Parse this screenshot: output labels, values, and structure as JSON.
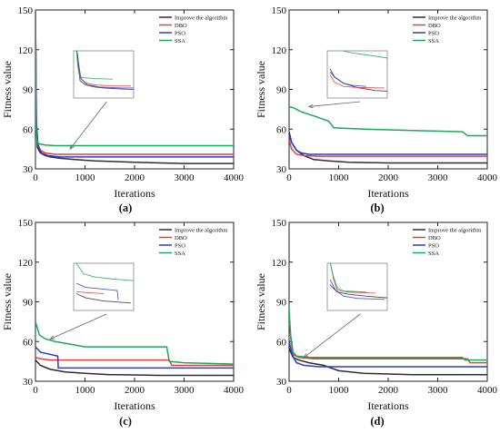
{
  "chart_data": [
    {
      "type": "line",
      "caption": "(a)",
      "xlabel": "Iterations",
      "ylabel": "Fitness value",
      "xlim": [
        0,
        4000
      ],
      "ylim": [
        30,
        150
      ],
      "xticks": [
        0,
        1000,
        2000,
        3000,
        4000
      ],
      "yticks": [
        30,
        60,
        90,
        120,
        150
      ],
      "legend_position": "top-right",
      "series": [
        {
          "name": "Improve the algorithm",
          "color": "#2b2b3a",
          "points": [
            [
              0,
              150
            ],
            [
              15,
              70
            ],
            [
              40,
              46
            ],
            [
              100,
              42
            ],
            [
              200,
              40
            ],
            [
              300,
              39
            ],
            [
              500,
              38
            ],
            [
              800,
              37
            ],
            [
              1200,
              36
            ],
            [
              2000,
              35
            ],
            [
              3000,
              34
            ],
            [
              4000,
              34
            ]
          ]
        },
        {
          "name": "DBO",
          "color": "#e0403a",
          "points": [
            [
              0,
              150
            ],
            [
              20,
              60
            ],
            [
              50,
              48
            ],
            [
              100,
              44
            ],
            [
              200,
              42
            ],
            [
              400,
              41
            ],
            [
              600,
              41
            ],
            [
              4000,
              41
            ]
          ]
        },
        {
          "name": "PSO",
          "color": "#2a3bd1",
          "points": [
            [
              0,
              150
            ],
            [
              20,
              65
            ],
            [
              50,
              48
            ],
            [
              120,
              42
            ],
            [
              250,
              40
            ],
            [
              500,
              39
            ],
            [
              800,
              39
            ],
            [
              4000,
              39
            ]
          ]
        },
        {
          "name": "SSA",
          "color": "#1aa85a",
          "points": [
            [
              0,
              150
            ],
            [
              15,
              60
            ],
            [
              30,
              52
            ],
            [
              60,
              49
            ],
            [
              200,
              48
            ],
            [
              400,
              47.5
            ],
            [
              4000,
              47.5
            ]
          ]
        }
      ],
      "inset": {
        "points_at": [
          700,
          45
        ]
      }
    },
    {
      "type": "line",
      "caption": "(b)",
      "xlabel": "Iterations",
      "ylabel": "Fitness value",
      "xlim": [
        0,
        4000
      ],
      "ylim": [
        30,
        150
      ],
      "xticks": [
        0,
        1000,
        2000,
        3000,
        4000
      ],
      "yticks": [
        30,
        60,
        90,
        120,
        150
      ],
      "legend_position": "top-right",
      "series": [
        {
          "name": "Improve the algorithm",
          "color": "#2b2b3a",
          "points": [
            [
              0,
              58
            ],
            [
              50,
              50
            ],
            [
              150,
              44
            ],
            [
              300,
              40
            ],
            [
              500,
              37
            ],
            [
              800,
              36
            ],
            [
              1200,
              35
            ],
            [
              2000,
              34.5
            ],
            [
              4000,
              34.5
            ]
          ]
        },
        {
          "name": "DBO",
          "color": "#e0403a",
          "points": [
            [
              0,
              52
            ],
            [
              50,
              45
            ],
            [
              150,
              41
            ],
            [
              300,
              40
            ],
            [
              600,
              39.5
            ],
            [
              4000,
              39.5
            ]
          ]
        },
        {
          "name": "PSO",
          "color": "#2a3bd1",
          "points": [
            [
              0,
              55
            ],
            [
              50,
              50
            ],
            [
              150,
              44
            ],
            [
              250,
              42
            ],
            [
              400,
              41
            ],
            [
              4000,
              41
            ]
          ]
        },
        {
          "name": "SSA",
          "color": "#1aa85a",
          "points": [
            [
              0,
              77
            ],
            [
              100,
              76
            ],
            [
              250,
              73
            ],
            [
              500,
              70
            ],
            [
              800,
              66
            ],
            [
              900,
              61
            ],
            [
              1500,
              60
            ],
            [
              2500,
              59
            ],
            [
              3500,
              58
            ],
            [
              3600,
              55
            ],
            [
              4000,
              55
            ]
          ]
        }
      ],
      "inset": {
        "points_at": [
          400,
          77
        ]
      }
    },
    {
      "type": "line",
      "caption": "(c)",
      "xlabel": "Iterations",
      "ylabel": "Fitness value",
      "xlim": [
        0,
        4000
      ],
      "ylim": [
        30,
        150
      ],
      "xticks": [
        0,
        1000,
        2000,
        3000,
        4000
      ],
      "yticks": [
        30,
        60,
        90,
        120,
        150
      ],
      "legend_position": "top-right",
      "series": [
        {
          "name": "Improve the algorithm",
          "color": "#2b2b3a",
          "points": [
            [
              0,
              46
            ],
            [
              100,
              42
            ],
            [
              300,
              39
            ],
            [
              600,
              37
            ],
            [
              1000,
              36
            ],
            [
              1500,
              35
            ],
            [
              2500,
              34.5
            ],
            [
              4000,
              34.5
            ]
          ]
        },
        {
          "name": "DBO",
          "color": "#e0403a",
          "points": [
            [
              0,
              48
            ],
            [
              100,
              47
            ],
            [
              300,
              46
            ],
            [
              2700,
              46
            ],
            [
              2750,
              42
            ],
            [
              4000,
              42
            ]
          ]
        },
        {
          "name": "PSO",
          "color": "#2a3bd1",
          "points": [
            [
              0,
              56
            ],
            [
              100,
              52
            ],
            [
              450,
              49
            ],
            [
              460,
              40
            ],
            [
              4000,
              40
            ]
          ]
        },
        {
          "name": "SSA",
          "color": "#1aa85a",
          "points": [
            [
              0,
              75
            ],
            [
              80,
              65
            ],
            [
              200,
              62
            ],
            [
              400,
              60
            ],
            [
              700,
              58
            ],
            [
              1000,
              56
            ],
            [
              2650,
              56
            ],
            [
              2700,
              45
            ],
            [
              3000,
              44
            ],
            [
              4000,
              43
            ]
          ]
        }
      ],
      "inset": {
        "points_at": [
          300,
          62
        ]
      }
    },
    {
      "type": "line",
      "caption": "(d)",
      "xlabel": "Iterations",
      "ylabel": "Fitness value",
      "xlim": [
        0,
        4000
      ],
      "ylim": [
        30,
        150
      ],
      "xticks": [
        0,
        1000,
        2000,
        3000,
        4000
      ],
      "yticks": [
        30,
        60,
        90,
        120,
        150
      ],
      "legend_position": "top-right",
      "series": [
        {
          "name": "Improve the algorithm",
          "color": "#2b2b3a",
          "points": [
            [
              0,
              55
            ],
            [
              80,
              48
            ],
            [
              200,
              46
            ],
            [
              400,
              44
            ],
            [
              700,
              42
            ],
            [
              1000,
              38
            ],
            [
              1500,
              36
            ],
            [
              2500,
              35
            ],
            [
              4000,
              35
            ]
          ]
        },
        {
          "name": "DBO",
          "color": "#e0403a",
          "points": [
            [
              0,
              80
            ],
            [
              40,
              60
            ],
            [
              80,
              50
            ],
            [
              200,
              48
            ],
            [
              500,
              47
            ],
            [
              3600,
              47
            ],
            [
              3650,
              44
            ],
            [
              4000,
              44
            ]
          ]
        },
        {
          "name": "PSO",
          "color": "#2a3bd1",
          "points": [
            [
              0,
              60
            ],
            [
              60,
              50
            ],
            [
              150,
              44
            ],
            [
              300,
              42
            ],
            [
              600,
              41
            ],
            [
              4000,
              41
            ]
          ]
        },
        {
          "name": "SSA",
          "color": "#1aa85a",
          "points": [
            [
              0,
              85
            ],
            [
              30,
              65
            ],
            [
              80,
              52
            ],
            [
              150,
              49
            ],
            [
              400,
              48
            ],
            [
              3500,
              48
            ],
            [
              3550,
              46
            ],
            [
              4000,
              46
            ]
          ]
        }
      ],
      "inset": {
        "points_at": [
          300,
          48
        ]
      }
    }
  ]
}
